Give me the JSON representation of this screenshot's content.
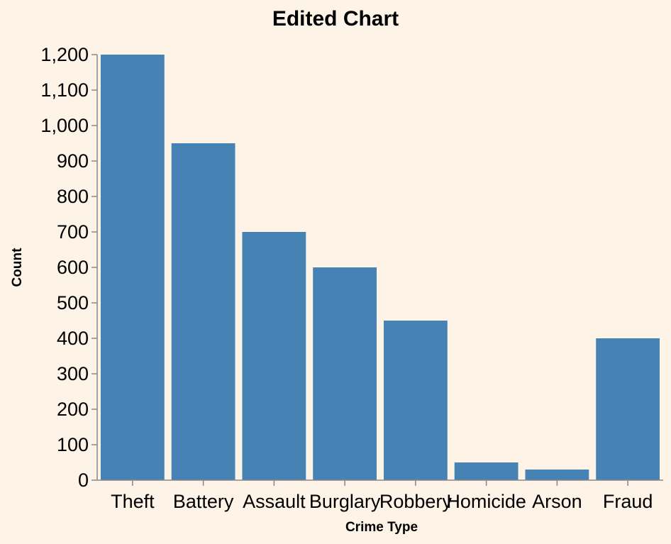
{
  "chart_data": {
    "type": "bar",
    "title": "Edited Chart",
    "xlabel": "Crime Type",
    "ylabel": "Count",
    "categories": [
      "Theft",
      "Battery",
      "Assault",
      "Burglary",
      "Robbery",
      "Homicide",
      "Arson",
      "Fraud"
    ],
    "values": [
      1200,
      950,
      700,
      600,
      450,
      50,
      30,
      400
    ],
    "ylim": [
      0,
      1200
    ],
    "yticks": [
      0,
      100,
      200,
      300,
      400,
      500,
      600,
      700,
      800,
      900,
      1000,
      1100,
      1200
    ],
    "ytick_labels": [
      "0",
      "100",
      "200",
      "300",
      "400",
      "500",
      "600",
      "700",
      "800",
      "900",
      "1,000",
      "1,100",
      "1,200"
    ],
    "grid": false,
    "legend": "none",
    "colors": {
      "bar": "#4682b4",
      "background": "#fdf3e7",
      "axis": "#888888"
    }
  }
}
